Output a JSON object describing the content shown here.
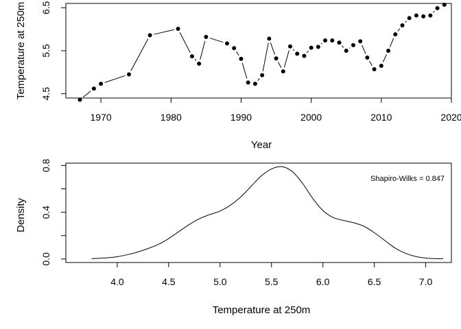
{
  "chart_data": [
    {
      "type": "line",
      "xlabel": "Year",
      "ylabel": "Temperature at 250m",
      "xlim": [
        1965,
        2020
      ],
      "ylim": [
        4.4,
        6.6
      ],
      "xticks": [
        1970,
        1980,
        1990,
        2000,
        2010,
        2020
      ],
      "yticks": [
        4.5,
        5.5,
        6.5
      ],
      "x": [
        1967,
        1969,
        1970,
        1974,
        1977,
        1981,
        1983,
        1984,
        1985,
        1988,
        1989,
        1990,
        1991,
        1992,
        1993,
        1994,
        1995,
        1996,
        1997,
        1998,
        1999,
        2000,
        2001,
        2002,
        2003,
        2004,
        2005,
        2006,
        2007,
        2008,
        2009,
        2010,
        2011,
        2012,
        2013,
        2014,
        2015,
        2016,
        2017,
        2018,
        2019
      ],
      "y": [
        4.36,
        4.62,
        4.73,
        4.95,
        5.86,
        6.01,
        5.37,
        5.2,
        5.82,
        5.67,
        5.56,
        5.31,
        4.76,
        4.73,
        4.93,
        5.78,
        5.32,
        5.02,
        5.6,
        5.43,
        5.38,
        5.57,
        5.59,
        5.74,
        5.74,
        5.69,
        5.5,
        5.63,
        5.72,
        5.34,
        5.07,
        5.15,
        5.5,
        5.88,
        6.09,
        6.26,
        6.32,
        6.3,
        6.32,
        6.49,
        6.57
      ]
    },
    {
      "type": "line",
      "xlabel": "Temperature at 250m",
      "ylabel": "Density",
      "xlim": [
        3.5,
        7.25
      ],
      "ylim": [
        -0.03,
        0.82
      ],
      "xticks": [
        "4.0",
        "4.5",
        "5.0",
        "5.5",
        "6.0",
        "6.5",
        "7.0"
      ],
      "yticks": [
        "0.0",
        "0.4",
        "0.8"
      ],
      "minor_yticks": [
        0.2,
        0.6
      ],
      "annotation": "Shapiro-Wilks = 0.847",
      "x": [
        3.75,
        3.9,
        4.0,
        4.1,
        4.2,
        4.3,
        4.4,
        4.5,
        4.6,
        4.7,
        4.8,
        4.9,
        5.0,
        5.1,
        5.2,
        5.3,
        5.4,
        5.5,
        5.6,
        5.7,
        5.8,
        5.9,
        6.0,
        6.1,
        6.2,
        6.3,
        6.4,
        6.5,
        6.6,
        6.7,
        6.8,
        6.9,
        7.0,
        7.1,
        7.17
      ],
      "y": [
        0.003,
        0.01,
        0.02,
        0.037,
        0.06,
        0.09,
        0.125,
        0.175,
        0.235,
        0.295,
        0.345,
        0.38,
        0.41,
        0.46,
        0.53,
        0.62,
        0.71,
        0.77,
        0.79,
        0.75,
        0.65,
        0.52,
        0.415,
        0.355,
        0.33,
        0.31,
        0.28,
        0.225,
        0.16,
        0.095,
        0.05,
        0.022,
        0.008,
        0.003,
        0.002
      ]
    }
  ]
}
